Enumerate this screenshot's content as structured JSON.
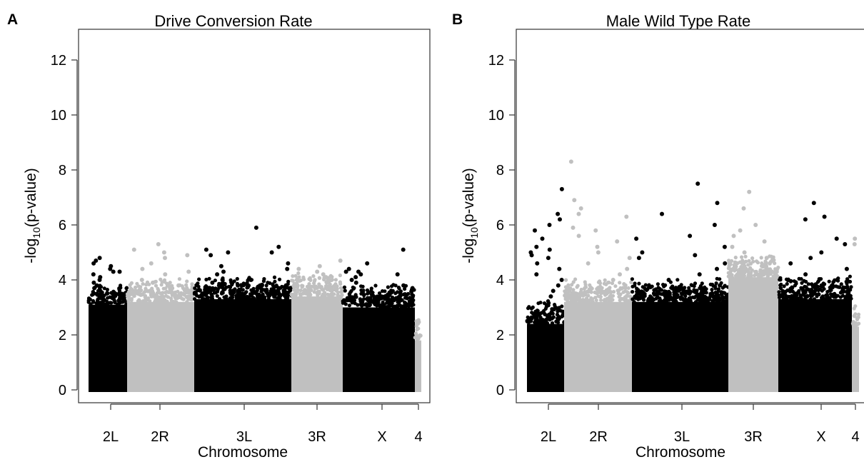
{
  "chart_data": [
    {
      "panel": "A",
      "type": "scatter",
      "title": "Drive Conversion Rate",
      "xlabel": "Chromosome",
      "ylabel_main": "-log",
      "ylabel_sub": "10",
      "ylabel_tail": "(p-value)",
      "ylim": [
        0,
        12.5
      ],
      "yticks": [
        0,
        2,
        4,
        6,
        8,
        10,
        12
      ],
      "grid": false,
      "legend": "none",
      "chromosomes": [
        {
          "name": "2L",
          "color": "#000000",
          "ceiling": 3.1,
          "outliers": [
            4.8,
            4.7,
            4.6,
            4.5,
            4.4,
            4.3,
            4.2,
            4.1,
            4.0,
            3.9,
            3.8,
            3.7,
            3.6,
            4.3
          ]
        },
        {
          "name": "2R",
          "color": "#c0c0c0",
          "ceiling": 3.2,
          "outliers": [
            5.3,
            5.1,
            4.9,
            4.6,
            4.4,
            4.3,
            4.2,
            4.0,
            3.9,
            3.8,
            5.0,
            4.8,
            3.6
          ]
        },
        {
          "name": "3L",
          "color": "#000000",
          "ceiling": 3.3,
          "outliers": [
            5.1,
            5.0,
            4.9,
            5.0,
            4.6,
            4.5,
            4.4,
            4.2,
            4.0,
            3.9,
            3.8,
            3.7,
            5.2,
            5.9,
            4.3
          ]
        },
        {
          "name": "3R",
          "color": "#c0c0c0",
          "ceiling": 3.4,
          "outliers": [
            4.7,
            4.4,
            4.3,
            4.2,
            4.1,
            4.0,
            3.9,
            4.5,
            3.8
          ]
        },
        {
          "name": "X",
          "color": "#000000",
          "ceiling": 3.0,
          "outliers": [
            5.1,
            4.6,
            4.4,
            4.3,
            4.2,
            4.1,
            4.0,
            3.9,
            3.8,
            3.7,
            4.3,
            4.2
          ]
        },
        {
          "name": "4",
          "color": "#c0c0c0",
          "ceiling": 1.8,
          "outliers": [
            1.9
          ]
        }
      ]
    },
    {
      "panel": "B",
      "type": "scatter",
      "title": "Male Wild Type Rate",
      "xlabel": "Chromosome",
      "ylabel_main": "-log",
      "ylabel_sub": "10",
      "ylabel_tail": "(p-value)",
      "ylim": [
        0,
        12.5
      ],
      "yticks": [
        0,
        2,
        4,
        6,
        8,
        10,
        12
      ],
      "grid": false,
      "legend": "none",
      "chromosomes": [
        {
          "name": "2L",
          "color": "#000000",
          "ceiling": 2.4,
          "outliers": [
            7.3,
            6.4,
            6.2,
            6.0,
            5.8,
            5.5,
            5.2,
            5.0,
            4.8,
            4.6,
            4.4,
            4.2,
            4.0,
            3.8,
            3.6,
            3.4,
            5.1,
            4.9
          ]
        },
        {
          "name": "2R",
          "color": "#c0c0c0",
          "ceiling": 3.2,
          "outliers": [
            8.3,
            6.9,
            6.6,
            6.4,
            6.3,
            5.9,
            5.8,
            5.6,
            5.4,
            5.2,
            5.0,
            4.8,
            4.6,
            4.4,
            4.2,
            4.0
          ]
        },
        {
          "name": "3L",
          "color": "#000000",
          "ceiling": 3.2,
          "outliers": [
            7.5,
            6.8,
            6.4,
            6.0,
            5.6,
            5.5,
            5.2,
            5.0,
            4.9,
            4.8,
            4.6,
            4.4,
            4.2,
            4.0,
            3.8
          ]
        },
        {
          "name": "3R",
          "color": "#c0c0c0",
          "ceiling": 4.1,
          "outliers": [
            7.2,
            6.6,
            6.0,
            5.8,
            5.6,
            5.4,
            5.2,
            5.0,
            4.8,
            4.6,
            4.4
          ]
        },
        {
          "name": "X",
          "color": "#000000",
          "ceiling": 3.3,
          "outliers": [
            6.8,
            6.3,
            6.2,
            5.5,
            5.0,
            4.8,
            4.6,
            4.4,
            4.2,
            4.0,
            3.8,
            5.3
          ]
        },
        {
          "name": "4",
          "color": "#c0c0c0",
          "ceiling": 2.3,
          "outliers": [
            5.5,
            5.3
          ]
        }
      ]
    }
  ]
}
